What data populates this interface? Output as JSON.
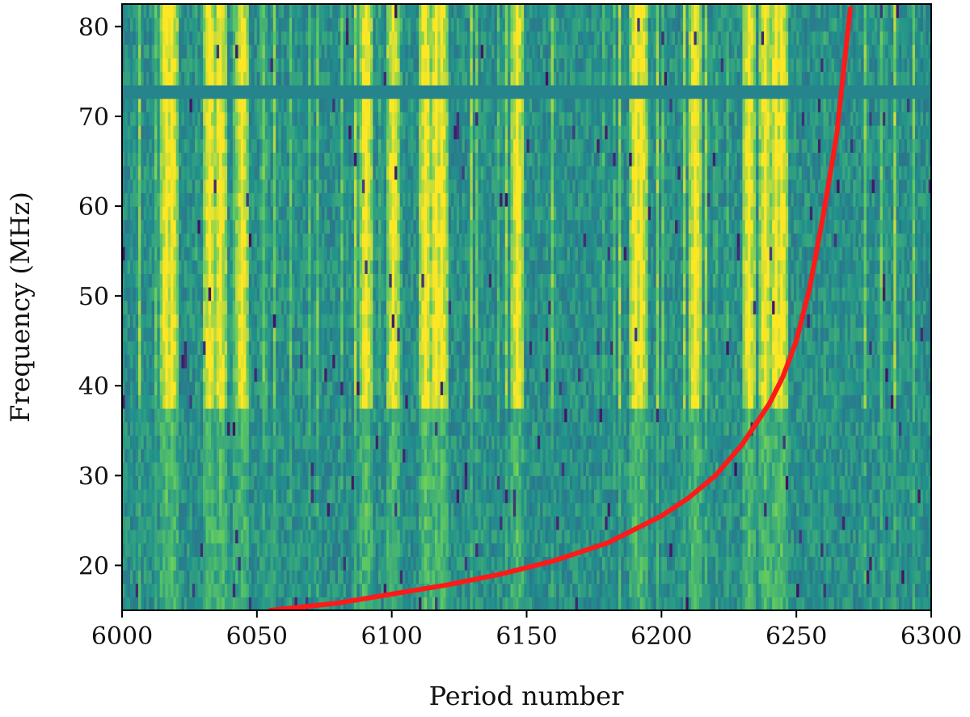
{
  "chart_data": {
    "type": "heatmap",
    "xlabel": "Period number",
    "ylabel": "Frequency (MHz)",
    "xlim": [
      6000,
      6300
    ],
    "ylim": [
      15,
      82.5
    ],
    "xticks": [
      6000,
      6050,
      6100,
      6150,
      6200,
      6250,
      6300
    ],
    "yticks": [
      20,
      30,
      40,
      50,
      60,
      70,
      80
    ],
    "colormap": "viridis",
    "heatmap_grid": {
      "period_bins": 300,
      "frequency_bins": 45
    },
    "masked_band_mhz": [
      71.5,
      73.5
    ],
    "bright_vertical_streaks_periods": [
      6016,
      6018,
      6032,
      6036,
      6044,
      6090,
      6100,
      6112,
      6116,
      6118,
      6146,
      6190,
      6192,
      6212,
      6232,
      6238,
      6242,
      6244
    ],
    "series": [
      {
        "color": "#ff1a1a",
        "x": [
          6055,
          6080,
          6100,
          6120,
          6140,
          6160,
          6180,
          6200,
          6210,
          6220,
          6230,
          6240,
          6245,
          6250,
          6255,
          6260,
          6265,
          6270
        ],
        "y": [
          15.0,
          15.8,
          16.8,
          17.8,
          19.0,
          20.5,
          22.5,
          25.5,
          27.5,
          30.0,
          33.5,
          38.0,
          41.0,
          45.0,
          51.0,
          59.0,
          68.0,
          82.0
        ]
      }
    ]
  }
}
